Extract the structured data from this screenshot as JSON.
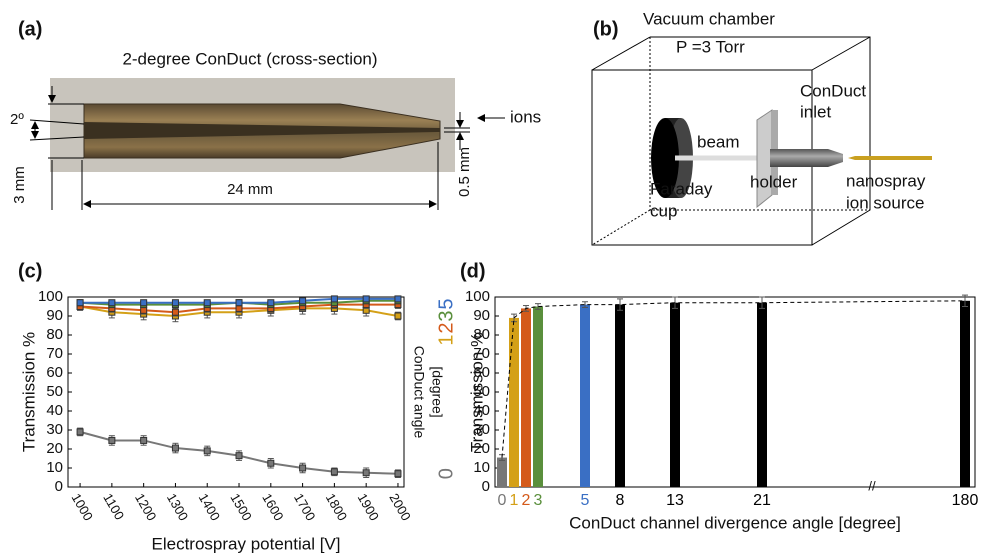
{
  "panel_a": {
    "label": "(a)",
    "title": "2-degree ConDuct (cross-section)",
    "angle": "2º",
    "height": "3 mm",
    "length": "24 mm",
    "tip": "0.5 mm",
    "ions": "ions"
  },
  "panel_b": {
    "label": "(b)",
    "chamber": "Vacuum chamber",
    "pressure": "P =3 Torr",
    "beam": "beam",
    "inlet": [
      "ConDuct",
      "inlet"
    ],
    "source": [
      "nanospray",
      "ion source"
    ],
    "cup": [
      "Faraday",
      "cup"
    ],
    "holder": "holder"
  },
  "chart_data": [
    {
      "type": "line",
      "label": "(c)",
      "x_label": "Electrospray potential [V]",
      "y_label": "Transmission %",
      "legend_title": [
        "ConDuct angle",
        "[degree]"
      ],
      "x": [
        1000,
        1100,
        1200,
        1300,
        1400,
        1500,
        1600,
        1700,
        1800,
        1900,
        2000
      ],
      "xlim": [
        962,
        2019
      ],
      "xticks": [
        1000,
        1100,
        1200,
        1300,
        1400,
        1500,
        1600,
        1700,
        1800,
        1900,
        2000
      ],
      "ylim": [
        0,
        100
      ],
      "yticks": [
        0,
        10,
        20,
        30,
        40,
        50,
        60,
        70,
        80,
        90,
        100
      ],
      "series": [
        {
          "name": "0",
          "color": "#777777",
          "values": [
            29,
            24.5,
            24.5,
            20.5,
            19,
            16.5,
            12.5,
            10,
            8,
            7.5,
            7
          ],
          "errors": [
            2,
            2.5,
            2.5,
            2.5,
            2.5,
            2.5,
            2.5,
            2.5,
            2,
            2.5,
            2
          ]
        },
        {
          "name": "1",
          "color": "#d4a017",
          "values": [
            95,
            92,
            91,
            90,
            92,
            92,
            93,
            94,
            94,
            93,
            90
          ],
          "errors": [
            2,
            3,
            3,
            3,
            3,
            3,
            3,
            3,
            3,
            3,
            2
          ]
        },
        {
          "name": "2",
          "color": "#d45a1a",
          "values": [
            95,
            94,
            93,
            92,
            94,
            94,
            94,
            95,
            96,
            96,
            96
          ],
          "errors": [
            2,
            2,
            2,
            2,
            2,
            2,
            2,
            2,
            2,
            2,
            2
          ]
        },
        {
          "name": "3",
          "color": "#5a8f3c",
          "values": [
            97,
            96,
            96,
            96,
            96,
            97,
            96,
            97,
            97,
            98,
            98
          ],
          "errors": [
            1.5,
            1.5,
            1.5,
            1.5,
            1.5,
            1.5,
            1.5,
            1.5,
            1.5,
            1.5,
            1.5
          ]
        },
        {
          "name": "5",
          "color": "#3a6fc4",
          "values": [
            97,
            97,
            97,
            97,
            97,
            97,
            97,
            98,
            99,
            99,
            99
          ],
          "errors": [
            1,
            1,
            1,
            1,
            1,
            1,
            1,
            1,
            1,
            1,
            1
          ]
        }
      ]
    },
    {
      "type": "bar",
      "label": "(d)",
      "x_label": "ConDuct channel divergence angle [degree]",
      "y_label": "Transmission %",
      "categories": [
        "0",
        "1",
        "2",
        "3",
        "5",
        "8",
        "13",
        "21",
        "180"
      ],
      "values": [
        15.5,
        89,
        94,
        95,
        96,
        96,
        97,
        97,
        98
      ],
      "errors": [
        1.5,
        2,
        1.5,
        1.5,
        1.5,
        3,
        3,
        3,
        3
      ],
      "colors": [
        "#777777",
        "#d4a017",
        "#d45a1a",
        "#5a8f3c",
        "#3a6fc4",
        "#000000",
        "#000000",
        "#000000",
        "#000000"
      ],
      "ylim": [
        0,
        100
      ],
      "yticks": [
        0,
        10,
        20,
        30,
        40,
        50,
        60,
        70,
        80,
        90,
        100
      ]
    }
  ]
}
